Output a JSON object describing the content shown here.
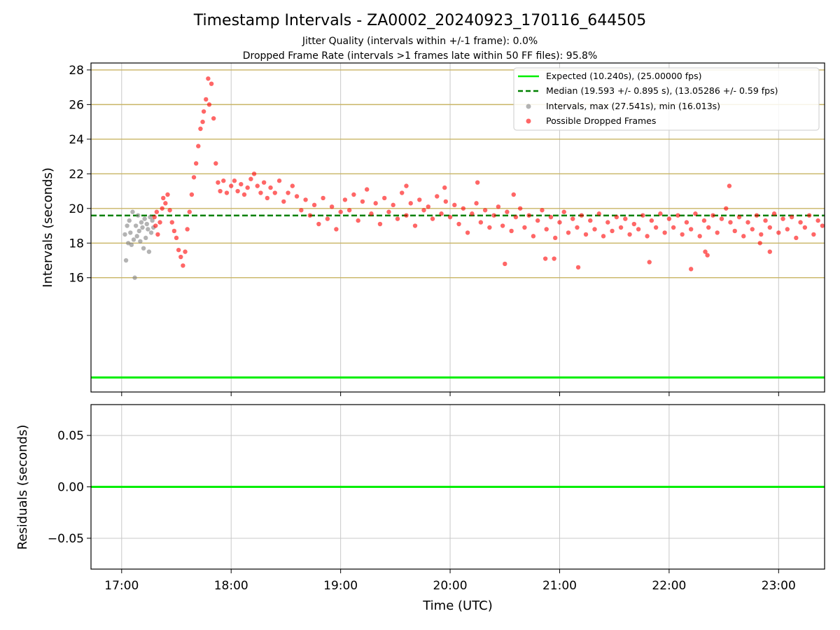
{
  "chart_data": [
    {
      "type": "scatter",
      "title": "Timestamp Intervals - ZA0002_20240923_170116_644505",
      "subtitle_lines": [
        "Jitter Quality (intervals within +/-1 frame): 0.0%",
        "Dropped Frame Rate (intervals >1 frames late within 50 FF files): 95.8%"
      ],
      "xlabel": "",
      "ylabel": "Intervals (seconds)",
      "x_unit": "hours (UTC)",
      "xlim": [
        16.72,
        23.42
      ],
      "ylim": [
        9.4,
        28.4
      ],
      "x_ticks": [
        17,
        18,
        19,
        20,
        21,
        22,
        23
      ],
      "y_ticks": [
        16,
        18,
        20,
        22,
        24,
        26,
        28
      ],
      "y_tick_labels": [
        "16",
        "18",
        "20",
        "22",
        "24",
        "26",
        "28"
      ],
      "grid": true,
      "grid_color": "#c9b464",
      "legend_position": "top-right",
      "expected_interval": 10.24,
      "median_interval": 19.593,
      "series": [
        {
          "name": "Expected (10.240s), (25.00000 fps)",
          "kind": "hline",
          "value": 10.24,
          "color": "#00ee00",
          "style": "solid"
        },
        {
          "name": "Median (19.593 +/- 0.895 s), (13.05286 +/- 0.59 fps)",
          "kind": "hline",
          "value": 19.593,
          "color": "#008000",
          "style": "dashed"
        },
        {
          "name": "Intervals, max (27.541s), min (16.013s)",
          "kind": "scatter",
          "color": "#808080",
          "points": [
            [
              17.03,
              18.5
            ],
            [
              17.04,
              17.0
            ],
            [
              17.05,
              19.0
            ],
            [
              17.06,
              18.0
            ],
            [
              17.07,
              19.3
            ],
            [
              17.08,
              18.6
            ],
            [
              17.09,
              17.9
            ],
            [
              17.1,
              19.8
            ],
            [
              17.11,
              18.2
            ],
            [
              17.12,
              16.0
            ],
            [
              17.13,
              19.0
            ],
            [
              17.14,
              18.4
            ],
            [
              17.15,
              19.6
            ],
            [
              17.16,
              18.7
            ],
            [
              17.17,
              18.1
            ],
            [
              17.18,
              19.2
            ],
            [
              17.19,
              18.9
            ],
            [
              17.2,
              17.7
            ],
            [
              17.21,
              19.4
            ],
            [
              17.22,
              18.3
            ],
            [
              17.23,
              19.1
            ],
            [
              17.24,
              18.8
            ],
            [
              17.25,
              17.5
            ],
            [
              17.26,
              19.5
            ],
            [
              17.27,
              18.6
            ],
            [
              17.28,
              19.3
            ],
            [
              17.29,
              18.9
            ]
          ]
        },
        {
          "name": "Possible Dropped Frames",
          "kind": "scatter",
          "color": "#ff0000",
          "points": [
            [
              17.3,
              19.5
            ],
            [
              17.31,
              19.0
            ],
            [
              17.32,
              19.8
            ],
            [
              17.33,
              18.5
            ],
            [
              17.35,
              19.2
            ],
            [
              17.37,
              20.0
            ],
            [
              17.38,
              20.6
            ],
            [
              17.4,
              20.3
            ],
            [
              17.42,
              20.8
            ],
            [
              17.44,
              19.9
            ],
            [
              17.46,
              19.2
            ],
            [
              17.48,
              18.7
            ],
            [
              17.5,
              18.3
            ],
            [
              17.52,
              17.6
            ],
            [
              17.54,
              17.2
            ],
            [
              17.56,
              16.7
            ],
            [
              17.58,
              17.5
            ],
            [
              17.6,
              18.8
            ],
            [
              17.62,
              19.8
            ],
            [
              17.64,
              20.8
            ],
            [
              17.66,
              21.8
            ],
            [
              17.68,
              22.6
            ],
            [
              17.7,
              23.6
            ],
            [
              17.72,
              24.6
            ],
            [
              17.74,
              25.0
            ],
            [
              17.75,
              25.6
            ],
            [
              17.77,
              26.3
            ],
            [
              17.79,
              27.5
            ],
            [
              17.8,
              26.0
            ],
            [
              17.82,
              27.2
            ],
            [
              17.84,
              25.2
            ],
            [
              17.86,
              22.6
            ],
            [
              17.88,
              21.5
            ],
            [
              17.9,
              21.0
            ],
            [
              17.93,
              21.6
            ],
            [
              17.96,
              20.9
            ],
            [
              18.0,
              21.3
            ],
            [
              18.03,
              21.6
            ],
            [
              18.06,
              21.0
            ],
            [
              18.09,
              21.4
            ],
            [
              18.12,
              20.8
            ],
            [
              18.15,
              21.2
            ],
            [
              18.18,
              21.7
            ],
            [
              18.21,
              22.0
            ],
            [
              18.24,
              21.3
            ],
            [
              18.27,
              20.9
            ],
            [
              18.3,
              21.5
            ],
            [
              18.33,
              20.6
            ],
            [
              18.36,
              21.2
            ],
            [
              18.4,
              20.9
            ],
            [
              18.44,
              21.6
            ],
            [
              18.48,
              20.4
            ],
            [
              18.52,
              20.9
            ],
            [
              18.56,
              21.3
            ],
            [
              18.6,
              20.7
            ],
            [
              18.64,
              19.9
            ],
            [
              18.68,
              20.5
            ],
            [
              18.72,
              19.6
            ],
            [
              18.76,
              20.2
            ],
            [
              18.8,
              19.1
            ],
            [
              18.84,
              20.6
            ],
            [
              18.88,
              19.4
            ],
            [
              18.92,
              20.1
            ],
            [
              18.96,
              18.8
            ],
            [
              19.0,
              19.8
            ],
            [
              19.04,
              20.5
            ],
            [
              19.08,
              19.9
            ],
            [
              19.12,
              20.8
            ],
            [
              19.16,
              19.3
            ],
            [
              19.2,
              20.4
            ],
            [
              19.24,
              21.1
            ],
            [
              19.28,
              19.7
            ],
            [
              19.32,
              20.3
            ],
            [
              19.36,
              19.1
            ],
            [
              19.4,
              20.6
            ],
            [
              19.44,
              19.8
            ],
            [
              19.48,
              20.2
            ],
            [
              19.52,
              19.4
            ],
            [
              19.56,
              20.9
            ],
            [
              19.6,
              19.6
            ],
            [
              19.64,
              20.3
            ],
            [
              19.68,
              19.0
            ],
            [
              19.72,
              20.5
            ],
            [
              19.76,
              19.9
            ],
            [
              19.8,
              20.1
            ],
            [
              19.84,
              19.4
            ],
            [
              19.88,
              20.7
            ],
            [
              19.92,
              19.7
            ],
            [
              19.96,
              20.4
            ],
            [
              20.0,
              19.5
            ],
            [
              20.04,
              20.2
            ],
            [
              20.08,
              19.1
            ],
            [
              20.12,
              20.0
            ],
            [
              20.16,
              18.6
            ],
            [
              20.2,
              19.7
            ],
            [
              20.24,
              20.3
            ],
            [
              20.28,
              19.2
            ],
            [
              20.32,
              19.9
            ],
            [
              20.36,
              18.9
            ],
            [
              20.4,
              19.6
            ],
            [
              20.44,
              20.1
            ],
            [
              20.48,
              19.0
            ],
            [
              20.52,
              19.8
            ],
            [
              20.56,
              18.7
            ],
            [
              20.6,
              19.5
            ],
            [
              20.64,
              20.0
            ],
            [
              20.68,
              18.9
            ],
            [
              20.72,
              19.6
            ],
            [
              20.76,
              18.4
            ],
            [
              20.8,
              19.3
            ],
            [
              20.84,
              19.9
            ],
            [
              20.88,
              18.8
            ],
            [
              20.92,
              19.5
            ],
            [
              20.96,
              18.3
            ],
            [
              21.0,
              19.2
            ],
            [
              21.04,
              19.8
            ],
            [
              21.08,
              18.6
            ],
            [
              21.12,
              19.4
            ],
            [
              21.16,
              18.9
            ],
            [
              21.2,
              19.6
            ],
            [
              21.24,
              18.5
            ],
            [
              21.28,
              19.3
            ],
            [
              21.32,
              18.8
            ],
            [
              21.36,
              19.7
            ],
            [
              21.4,
              18.4
            ],
            [
              21.44,
              19.2
            ],
            [
              21.48,
              18.7
            ],
            [
              21.52,
              19.5
            ],
            [
              21.56,
              18.9
            ],
            [
              21.6,
              19.4
            ],
            [
              21.64,
              18.5
            ],
            [
              21.68,
              19.1
            ],
            [
              21.72,
              18.8
            ],
            [
              21.76,
              19.6
            ],
            [
              21.8,
              18.4
            ],
            [
              21.84,
              19.3
            ],
            [
              21.88,
              18.9
            ],
            [
              21.92,
              19.7
            ],
            [
              21.96,
              18.6
            ],
            [
              22.0,
              19.4
            ],
            [
              22.04,
              18.9
            ],
            [
              22.08,
              19.6
            ],
            [
              22.12,
              18.5
            ],
            [
              22.16,
              19.2
            ],
            [
              22.2,
              18.8
            ],
            [
              22.24,
              19.7
            ],
            [
              22.28,
              18.4
            ],
            [
              22.32,
              19.3
            ],
            [
              22.36,
              18.9
            ],
            [
              22.4,
              19.6
            ],
            [
              22.44,
              18.6
            ],
            [
              22.48,
              19.4
            ],
            [
              22.52,
              20.0
            ],
            [
              22.56,
              19.2
            ],
            [
              22.6,
              18.7
            ],
            [
              22.64,
              19.5
            ],
            [
              22.68,
              18.4
            ],
            [
              22.72,
              19.2
            ],
            [
              22.76,
              18.8
            ],
            [
              22.8,
              19.6
            ],
            [
              22.84,
              18.5
            ],
            [
              22.88,
              19.3
            ],
            [
              22.92,
              18.9
            ],
            [
              22.96,
              19.7
            ],
            [
              23.0,
              18.6
            ],
            [
              23.04,
              19.4
            ],
            [
              23.08,
              18.8
            ],
            [
              23.12,
              19.5
            ],
            [
              23.16,
              18.3
            ],
            [
              23.2,
              19.2
            ],
            [
              23.24,
              18.9
            ],
            [
              23.28,
              19.6
            ],
            [
              23.32,
              18.5
            ],
            [
              23.36,
              19.3
            ],
            [
              23.4,
              19.0
            ],
            [
              19.6,
              21.3
            ],
            [
              19.95,
              21.2
            ],
            [
              20.25,
              21.5
            ],
            [
              20.58,
              20.8
            ],
            [
              20.5,
              16.8
            ],
            [
              20.87,
              17.1
            ],
            [
              20.95,
              17.1
            ],
            [
              21.17,
              16.6
            ],
            [
              21.82,
              16.9
            ],
            [
              22.2,
              16.5
            ],
            [
              22.33,
              17.5
            ],
            [
              22.35,
              17.3
            ],
            [
              22.55,
              21.3
            ],
            [
              22.92,
              17.5
            ],
            [
              22.83,
              18.0
            ]
          ]
        }
      ]
    },
    {
      "type": "line",
      "xlabel": "Time (UTC)",
      "ylabel": "Residuals (seconds)",
      "xlim": [
        16.72,
        23.42
      ],
      "ylim": [
        -0.08,
        0.08
      ],
      "x_ticks": [
        17,
        18,
        19,
        20,
        21,
        22,
        23
      ],
      "x_tick_labels": [
        "17:00",
        "18:00",
        "19:00",
        "20:00",
        "21:00",
        "22:00",
        "23:00"
      ],
      "y_ticks": [
        -0.05,
        0.0,
        0.05
      ],
      "y_tick_labels": [
        "−0.05",
        "0.00",
        "0.05"
      ],
      "grid": true,
      "grid_color": "#c8c8c8",
      "series": [
        {
          "kind": "hline",
          "value": 0.0,
          "color": "#00ee00",
          "style": "solid"
        }
      ]
    }
  ]
}
